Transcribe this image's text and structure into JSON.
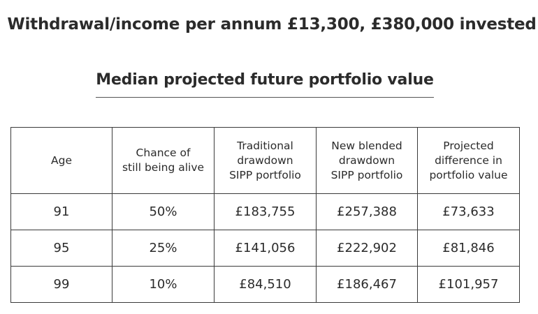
{
  "header": {
    "title": "Withdrawal/income per annum £13,300, £380,000 invested",
    "subtitle": "Median projected future portfolio value"
  },
  "table": {
    "columns": [
      {
        "lines": [
          "Age"
        ]
      },
      {
        "lines": [
          "Chance of",
          "still being alive"
        ]
      },
      {
        "lines": [
          "Traditional",
          "drawdown",
          "SIPP portfolio"
        ]
      },
      {
        "lines": [
          "New blended",
          "drawdown",
          "SIPP portfolio"
        ]
      },
      {
        "lines": [
          "Projected",
          "difference in",
          "portfolio value"
        ]
      }
    ],
    "rows": [
      [
        "91",
        "50%",
        "£183,755",
        "£257,388",
        "£73,633"
      ],
      [
        "95",
        "25%",
        "£141,056",
        "£222,902",
        "£81,846"
      ],
      [
        "99",
        "10%",
        "£84,510",
        "£186,467",
        "£101,957"
      ]
    ]
  }
}
